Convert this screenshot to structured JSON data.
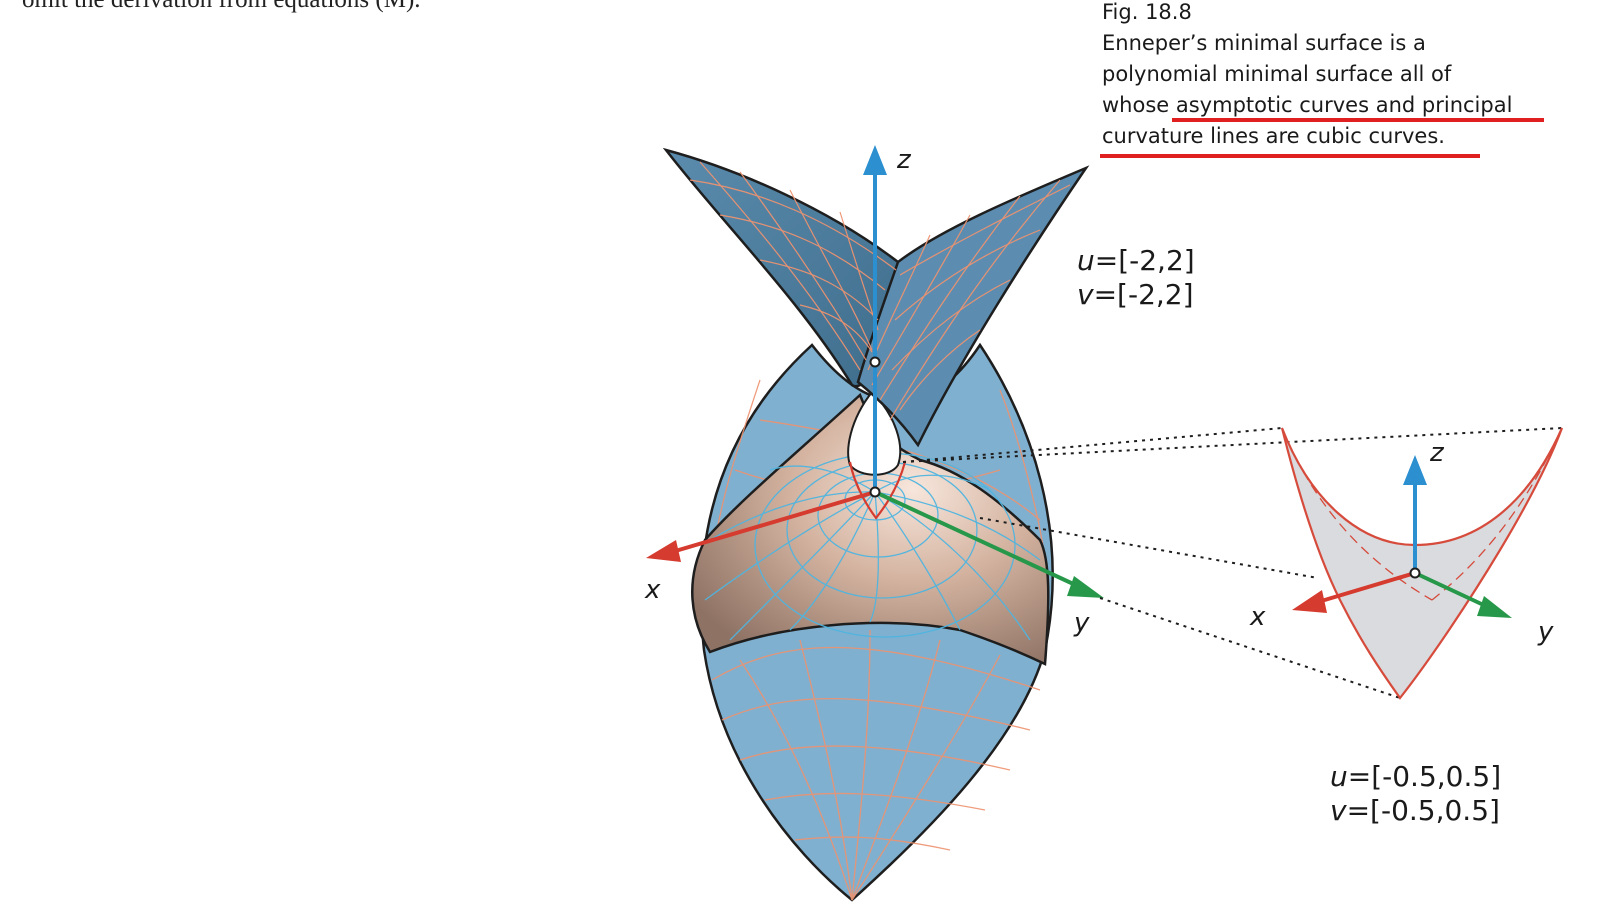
{
  "body_text_fragment": "omit the derivation from equations (M).",
  "caption": {
    "figure_number": "Fig. 18.8",
    "lines": [
      "Enneper’s minimal surface is a",
      "polynomial minimal surface all of",
      "whose asymptotic curves and principal",
      "curvature lines are cubic curves."
    ]
  },
  "main_figure": {
    "param_u_var": "u",
    "param_u_range": "=[-2,2]",
    "param_v_var": "v",
    "param_v_range": "=[-2,2]",
    "axes": {
      "x": "x",
      "y": "y",
      "z": "z"
    }
  },
  "inset_figure": {
    "param_u_var": "u",
    "param_u_range": "=[-0.5,0.5]",
    "param_v_var": "v",
    "param_v_range": "=[-0.5,0.5]",
    "axes": {
      "x": "x",
      "y": "y",
      "z": "z"
    }
  },
  "colors": {
    "surface_blue": "#7fb0cf",
    "surface_blue_dark": "#4f7d9c",
    "surface_tan": "#c9a38c",
    "asymptotic_lines": "#ee9370",
    "curvature_lines": "#4fb5e0",
    "x_axis": "#d63b2f",
    "y_axis": "#27984a",
    "z_axis": "#2b8fd0",
    "highlight_underline": "#e02020",
    "inset_fill": "#d9dbde",
    "inset_outline": "#d64b3c"
  }
}
